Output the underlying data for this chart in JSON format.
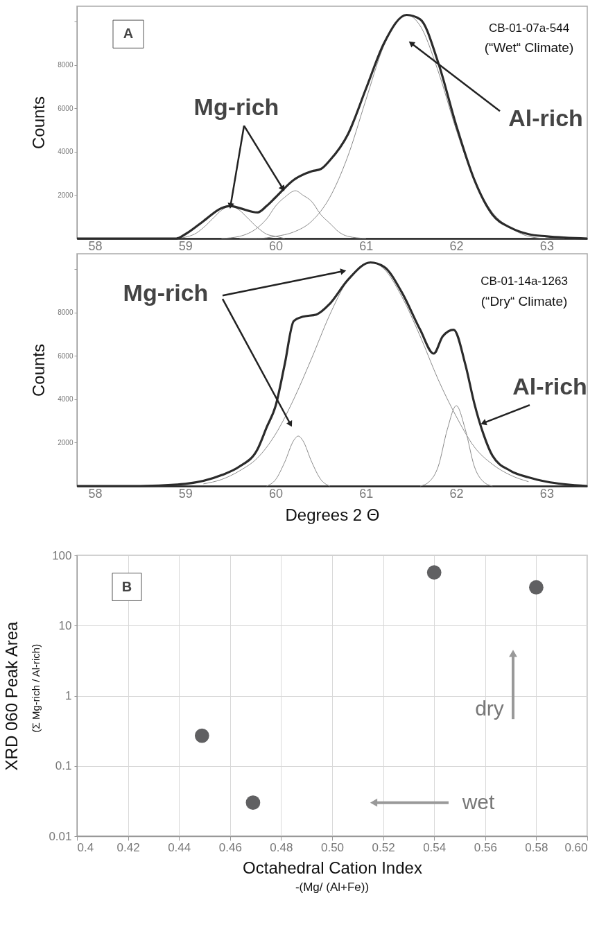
{
  "chart_data": [
    {
      "type": "line",
      "ylabel": "Counts",
      "xlim": [
        57.8,
        63.45
      ],
      "ylim": [
        0,
        10700
      ],
      "xticks": [
        58,
        59,
        60,
        61,
        62,
        63
      ],
      "yticks": [
        2000,
        4000,
        6000,
        8000,
        {
          "value": 10000,
          "label": null
        }
      ],
      "grid": false,
      "marker": "none",
      "line_style": "solid",
      "annotations": [
        "A",
        "CB-01-07a-544",
        "(“Wet“ Climate)",
        {
          "text": "Mg-rich",
          "x": 59.5,
          "y": 1500
        },
        {
          "text": "Al-rich",
          "x": 61.5,
          "y": 9000
        }
      ],
      "series": [
        {
          "color": "#2b2b2b",
          "x": [
            57.8,
            58.9,
            59.0,
            59.2,
            59.4,
            59.5,
            59.6,
            59.8,
            59.9,
            60.0,
            60.2,
            60.4,
            60.5,
            60.6,
            60.8,
            61.0,
            61.2,
            61.45,
            61.6,
            61.8,
            62.0,
            62.2,
            62.4,
            62.6,
            62.8,
            63.0,
            63.45
          ],
          "values": [
            0,
            0,
            200,
            800,
            1400,
            1500,
            1400,
            1200,
            1500,
            1900,
            2700,
            3100,
            3200,
            3600,
            4800,
            6900,
            9000,
            10300,
            10100,
            8100,
            5200,
            2700,
            1100,
            500,
            200,
            100,
            0
          ]
        },
        {
          "color": "#8a8a8a",
          "x": [
            58.9,
            59.1,
            59.2,
            59.3,
            59.4,
            59.5,
            59.6,
            59.7,
            59.8,
            59.9,
            60.0,
            60.1
          ],
          "values": [
            0,
            200,
            500,
            900,
            1300,
            1500,
            1300,
            900,
            500,
            200,
            100,
            0
          ]
        },
        {
          "color": "#8a8a8a",
          "x": [
            59.4,
            59.6,
            59.8,
            59.9,
            60.0,
            60.1,
            60.22,
            60.3,
            60.4,
            60.5,
            60.6,
            60.7,
            60.8,
            61.0
          ],
          "values": [
            0,
            100,
            500,
            900,
            1500,
            1900,
            2200,
            2000,
            1700,
            1100,
            700,
            300,
            100,
            0
          ]
        },
        {
          "color": "#8a8a8a",
          "x": [
            59.6,
            59.8,
            60.0,
            60.2,
            60.4,
            60.6,
            60.8,
            61.0,
            61.2,
            61.45,
            61.6,
            61.8,
            62.0,
            62.2,
            62.4,
            62.6,
            62.8,
            63.0,
            63.2
          ],
          "values": [
            0,
            0,
            100,
            300,
            800,
            1900,
            3800,
            6400,
            8900,
            10300,
            9800,
            7700,
            5000,
            2700,
            1200,
            500,
            100,
            0,
            0
          ]
        }
      ]
    },
    {
      "type": "line",
      "xlabel": "Degrees 2 Θ",
      "ylabel": "Counts",
      "xlim": [
        57.8,
        63.45
      ],
      "ylim": [
        0,
        10700
      ],
      "xticks": [
        58,
        59,
        60,
        61,
        62,
        63
      ],
      "yticks": [
        2000,
        4000,
        6000,
        8000,
        {
          "value": 10000,
          "label": null
        }
      ],
      "grid": false,
      "marker": "none",
      "line_style": "solid",
      "annotations": [
        {
          "text": "Mg-rich",
          "x": 60.75,
          "y": 9900
        },
        "CB-01-14a-1263",
        "(“Dry“ Climate)",
        {
          "text": "Al-rich",
          "x": 62.3,
          "y": 2900
        }
      ],
      "series": [
        {
          "color": "#2b2b2b",
          "x": [
            57.8,
            58.5,
            59.0,
            59.4,
            59.6,
            59.8,
            59.9,
            60.0,
            60.1,
            60.2,
            60.3,
            60.45,
            60.6,
            60.8,
            61.05,
            61.2,
            61.4,
            61.6,
            61.75,
            61.85,
            61.97,
            62.1,
            62.2,
            62.3,
            62.4,
            62.6,
            62.8,
            63.0,
            63.45
          ],
          "values": [
            0,
            0,
            100,
            500,
            900,
            1700,
            2700,
            3700,
            5600,
            7600,
            7800,
            7900,
            8400,
            9500,
            10300,
            10100,
            8900,
            7200,
            6100,
            6900,
            7200,
            5600,
            3800,
            2400,
            1400,
            700,
            400,
            200,
            0
          ]
        },
        {
          "color": "#8a8a8a",
          "x": [
            59.9,
            60.0,
            60.1,
            60.2,
            60.25,
            60.3,
            60.4,
            60.5,
            60.6
          ],
          "values": [
            0,
            300,
            1100,
            2100,
            2300,
            2100,
            1100,
            300,
            0
          ]
        },
        {
          "color": "#8a8a8a",
          "x": [
            61.6,
            61.7,
            61.8,
            61.9,
            62.0,
            62.1,
            62.2,
            62.3,
            62.4
          ],
          "values": [
            0,
            200,
            900,
            2600,
            3700,
            2600,
            900,
            200,
            0
          ]
        },
        {
          "color": "#8a8a8a",
          "x": [
            59.2,
            59.4,
            59.6,
            59.8,
            60.0,
            60.2,
            60.4,
            60.6,
            60.8,
            61.05,
            61.2,
            61.4,
            61.6,
            61.8,
            62.0,
            62.2,
            62.4,
            62.6,
            62.8
          ],
          "values": [
            100,
            300,
            700,
            1300,
            2400,
            4000,
            5900,
            7900,
            9500,
            10300,
            10000,
            8700,
            6900,
            4900,
            3200,
            1800,
            1000,
            500,
            200
          ]
        }
      ]
    },
    {
      "type": "scatter",
      "xlabel": "Octahedral Cation Index",
      "ylabel": "XRD 060 Peak Area",
      "log": "y",
      "xlim": [
        0.4,
        0.6
      ],
      "ylim": [
        0.01,
        100
      ],
      "xticks": [
        0.4,
        0.42,
        0.44,
        0.46,
        0.48,
        {
          "value": 0.5,
          "label": "0.50"
        },
        0.52,
        0.54,
        0.56,
        0.58,
        {
          "value": 0.6,
          "label": "0.60"
        }
      ],
      "yticks": [
        0.01,
        0.1,
        1,
        10,
        100
      ],
      "grid": true,
      "marker": "circle",
      "annotations": [
        "B",
        "-(Mg/ (Al+Fe))",
        "(Σ Mg-rich / Al-rich)",
        "dry",
        "wet"
      ],
      "series": [
        {
          "color": "#606062",
          "x": [
            0.449,
            0.469,
            0.54,
            0.58
          ],
          "values": [
            0.27,
            0.03,
            57,
            35
          ]
        }
      ]
    }
  ]
}
